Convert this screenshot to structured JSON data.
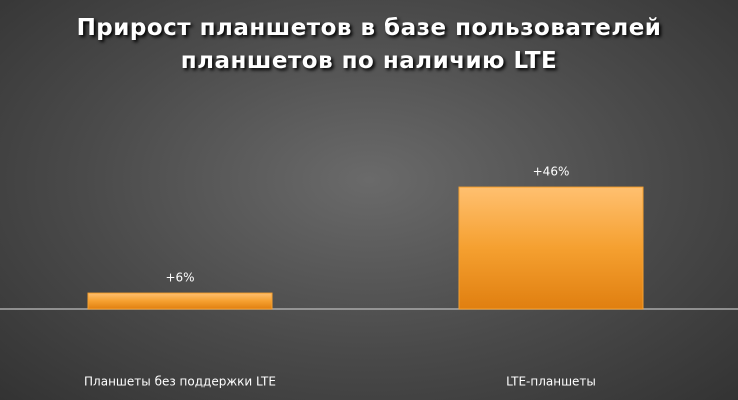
{
  "chart_data": {
    "type": "bar",
    "title": "Прирост планшетов в базе пользователей планшетов по наличию LTE",
    "categories": [
      "Планшеты без поддержки LTE",
      "LTE-планшеты"
    ],
    "values": [
      6,
      46
    ],
    "value_labels": [
      "+6%",
      "+46%"
    ],
    "color": "#f5a030"
  }
}
